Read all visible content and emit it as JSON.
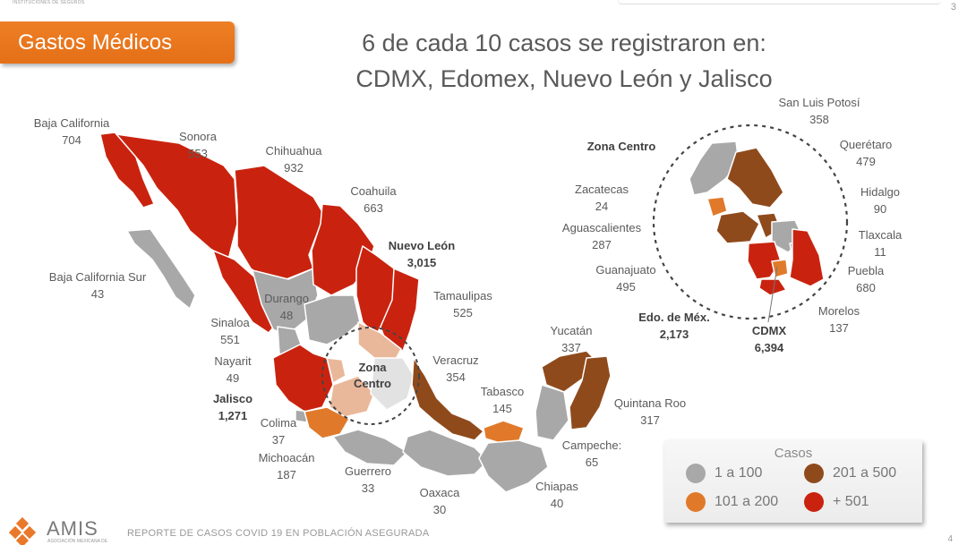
{
  "header": {
    "section": "Gastos Médicos",
    "headline_line1": "6 de cada 10 casos se registraron en:",
    "headline_line2": "CDMX, Edomex, Nuevo León y Jalisco",
    "page_number_top": "3"
  },
  "colors": {
    "range_1_100": "#a8a8a8",
    "range_101_200": "#e07a2a",
    "range_201_500": "#8f4a1c",
    "range_501_plus": "#c9230f",
    "zona_centro_light": "#e9b89a",
    "banner": "#ec7a22"
  },
  "states": [
    {
      "name": "Baja California",
      "cases": "704",
      "range": "+501"
    },
    {
      "name": "Sonora",
      "cases": "553",
      "range": "+501"
    },
    {
      "name": "Chihuahua",
      "cases": "932",
      "range": "+501"
    },
    {
      "name": "Coahuila",
      "cases": "663",
      "range": "+501"
    },
    {
      "name": "Nuevo León",
      "cases": "3,015",
      "range": "+501",
      "bold": true
    },
    {
      "name": "Baja California Sur",
      "cases": "43",
      "range": "1 a 100"
    },
    {
      "name": "Durango",
      "cases": "48",
      "range": "1 a 100"
    },
    {
      "name": "Tamaulipas",
      "cases": "525",
      "range": "+501"
    },
    {
      "name": "Sinaloa",
      "cases": "551",
      "range": "+501"
    },
    {
      "name": "Nayarit",
      "cases": "49",
      "range": "1 a 100"
    },
    {
      "name": "Jalisco",
      "cases": "1,271",
      "range": "+501",
      "bold": true
    },
    {
      "name": "Colima",
      "cases": "37",
      "range": "1 a 100"
    },
    {
      "name": "Michoacán",
      "cases": "187",
      "range": "101 a 200"
    },
    {
      "name": "Guerrero",
      "cases": "33",
      "range": "1 a 100"
    },
    {
      "name": "Oaxaca",
      "cases": "30",
      "range": "1 a 100"
    },
    {
      "name": "Chiapas",
      "cases": "40",
      "range": "1 a 100"
    },
    {
      "name": "Veracruz",
      "cases": "354",
      "range": "201 a 500"
    },
    {
      "name": "Tabasco",
      "cases": "145",
      "range": "101 a 200"
    },
    {
      "name": "Yucatán",
      "cases": "337",
      "range": "201 a 500"
    },
    {
      "name": "Quintana Roo",
      "cases": "317",
      "range": "201 a 500"
    },
    {
      "name": "Campeche:",
      "cases": "65",
      "range": "1 a 100"
    },
    {
      "name": "San Luis Potosí",
      "cases": "358",
      "range": "201 a 500"
    },
    {
      "name": "Querétaro",
      "cases": "479",
      "range": "201 a 500"
    },
    {
      "name": "Hidalgo",
      "cases": "90",
      "range": "1 a 100"
    },
    {
      "name": "Tlaxcala",
      "cases": "11",
      "range": "1 a 100"
    },
    {
      "name": "Puebla",
      "cases": "680",
      "range": "+501"
    },
    {
      "name": "Morelos",
      "cases": "137",
      "range": "101 a 200"
    },
    {
      "name": "CDMX",
      "cases": "6,394",
      "range": "+501",
      "bold": true
    },
    {
      "name": "Edo. de Méx.",
      "cases": "2,173",
      "range": "+501",
      "bold": true
    },
    {
      "name": "Guanajuato",
      "cases": "495",
      "range": "201 a 500"
    },
    {
      "name": "Aguascalientes",
      "cases": "287",
      "range": "201 a 500"
    },
    {
      "name": "Zacatecas",
      "cases": "24",
      "range": "1 a 100"
    }
  ],
  "zona_centro": {
    "map_label_line1": "Zona",
    "map_label_line2": "Centro",
    "inset_title": "Zona Centro"
  },
  "legend": {
    "title": "Casos",
    "items": [
      {
        "label": "1 a 100",
        "color": "#a8a8a8"
      },
      {
        "label": "201 a 500",
        "color": "#8f4a1c"
      },
      {
        "label": "101 a 200",
        "color": "#e07a2a"
      },
      {
        "label": "+ 501",
        "color": "#c9230f"
      }
    ]
  },
  "footer": {
    "logo": "AMIS",
    "logo_sub": "ASOCIACIÓN MEXICANA DE",
    "report_title": "REPORTE DE CASOS COVID 19 EN POBLACIÓN ASEGURADA",
    "page_number": "4",
    "top_logo_sub": "INSTITUCIONES DE SEGUROS"
  }
}
